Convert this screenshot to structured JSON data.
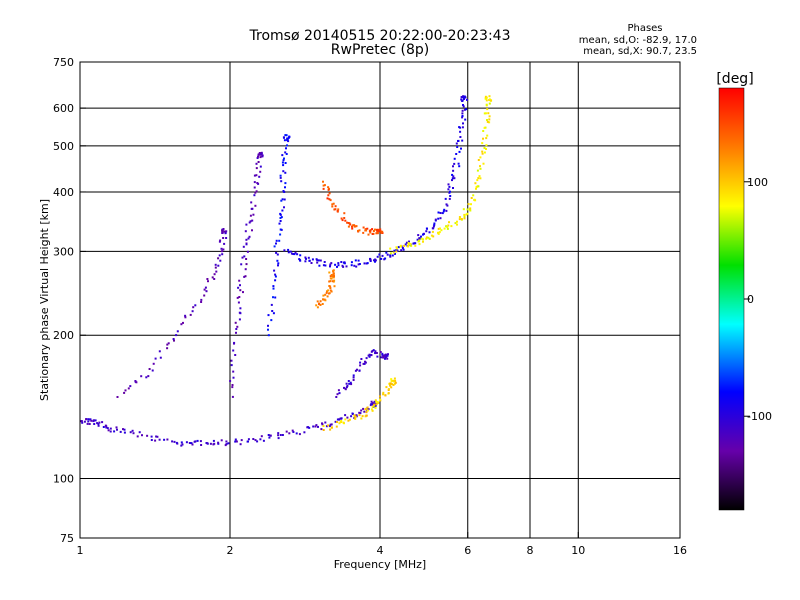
{
  "chart_data": {
    "type": "scatter",
    "title": "Tromsø 20140515 20:22:00-20:23:43",
    "subtitle": "RwPretec (8p)",
    "stats": {
      "heading": "Phases",
      "line1": "mean, sd,O: -82.9, 17.0",
      "line2": "mean, sd,X:  90.7, 23.5"
    },
    "xlabel": "Frequency [MHz]",
    "ylabel": "Stationary phase Virtual Height [km]",
    "x_scale": "log",
    "y_scale": "log",
    "xlim": [
      1,
      16
    ],
    "ylim": [
      75,
      750
    ],
    "x_ticks": [
      1,
      2,
      4,
      6,
      8,
      10,
      16
    ],
    "x_tick_labels": [
      "1",
      "2",
      "4",
      "6",
      "8",
      "10",
      "16"
    ],
    "x_gridlines": [
      2,
      4,
      6,
      8,
      10
    ],
    "y_ticks": [
      75,
      100,
      200,
      300,
      400,
      500,
      600,
      750
    ],
    "y_tick_labels": [
      "75",
      "100",
      "200",
      "300",
      "400",
      "500",
      "600",
      "750"
    ],
    "y_gridlines": [
      100,
      200,
      300,
      400,
      500,
      600
    ],
    "grid": true,
    "colorbar": {
      "label": "[deg]",
      "range": [
        -180,
        180
      ],
      "ticks": [
        100,
        0,
        -100
      ],
      "tick_labels": [
        "100",
        "0",
        "-100"
      ],
      "colormap": "rainbow"
    },
    "traces": [
      {
        "kind": "E-layer O trace",
        "phase_deg": -110,
        "points": [
          [
            1.0,
            132
          ],
          [
            1.05,
            132
          ],
          [
            1.1,
            130
          ],
          [
            1.2,
            126
          ],
          [
            1.4,
            122
          ],
          [
            1.6,
            119
          ],
          [
            1.8,
            118
          ],
          [
            2.0,
            119
          ],
          [
            2.3,
            121
          ],
          [
            2.6,
            124
          ],
          [
            3.0,
            128
          ],
          [
            3.3,
            132
          ],
          [
            3.6,
            137
          ],
          [
            3.9,
            143
          ]
        ]
      },
      {
        "kind": "E-layer X trace",
        "phase_deg": 95,
        "points": [
          [
            3.1,
            128
          ],
          [
            3.4,
            131
          ],
          [
            3.7,
            136
          ],
          [
            3.9,
            142
          ],
          [
            4.1,
            150
          ],
          [
            4.25,
            160
          ]
        ]
      },
      {
        "kind": "F-layer O trace",
        "phase_deg": -95,
        "points": [
          [
            2.6,
            300
          ],
          [
            2.8,
            290
          ],
          [
            3.0,
            284
          ],
          [
            3.3,
            281
          ],
          [
            3.6,
            283
          ],
          [
            3.9,
            288
          ],
          [
            4.2,
            296
          ],
          [
            4.5,
            306
          ],
          [
            4.8,
            320
          ],
          [
            5.1,
            340
          ],
          [
            5.4,
            370
          ],
          [
            5.6,
            420
          ],
          [
            5.75,
            480
          ],
          [
            5.85,
            560
          ],
          [
            5.9,
            630
          ]
        ]
      },
      {
        "kind": "F-layer X trace",
        "phase_deg": 85,
        "points": [
          [
            4.2,
            300
          ],
          [
            4.6,
            310
          ],
          [
            5.0,
            320
          ],
          [
            5.4,
            335
          ],
          [
            5.8,
            350
          ],
          [
            6.1,
            375
          ],
          [
            6.3,
            420
          ],
          [
            6.45,
            490
          ],
          [
            6.55,
            560
          ],
          [
            6.6,
            630
          ]
        ]
      },
      {
        "kind": "F-layer X trace (low)",
        "phase_deg": 150,
        "points": [
          [
            3.1,
            420
          ],
          [
            3.2,
            380
          ],
          [
            3.4,
            350
          ],
          [
            3.6,
            335
          ],
          [
            3.8,
            330
          ],
          [
            4.0,
            330
          ]
        ]
      },
      {
        "kind": "O cusp column",
        "phase_deg": -120,
        "points": [
          [
            2.0,
            150
          ],
          [
            2.05,
            200
          ],
          [
            2.1,
            250
          ],
          [
            2.15,
            300
          ],
          [
            2.2,
            350
          ],
          [
            2.25,
            420
          ],
          [
            2.3,
            480
          ]
        ]
      },
      {
        "kind": "O cusp column 2",
        "phase_deg": -85,
        "points": [
          [
            2.4,
            200
          ],
          [
            2.45,
            260
          ],
          [
            2.5,
            320
          ],
          [
            2.55,
            380
          ],
          [
            2.55,
            450
          ],
          [
            2.6,
            520
          ]
        ]
      },
      {
        "kind": "O low branch",
        "phase_deg": -120,
        "points": [
          [
            1.2,
            150
          ],
          [
            1.4,
            170
          ],
          [
            1.6,
            210
          ],
          [
            1.8,
            250
          ],
          [
            1.9,
            290
          ],
          [
            1.95,
            330
          ]
        ]
      },
      {
        "kind": "X mid cluster",
        "phase_deg": 130,
        "points": [
          [
            3.0,
            230
          ],
          [
            3.1,
            240
          ],
          [
            3.2,
            255
          ],
          [
            3.2,
            270
          ]
        ]
      },
      {
        "kind": "O mid cluster",
        "phase_deg": -110,
        "points": [
          [
            3.3,
            150
          ],
          [
            3.5,
            160
          ],
          [
            3.7,
            175
          ],
          [
            3.9,
            185
          ],
          [
            4.1,
            180
          ]
        ]
      }
    ]
  }
}
